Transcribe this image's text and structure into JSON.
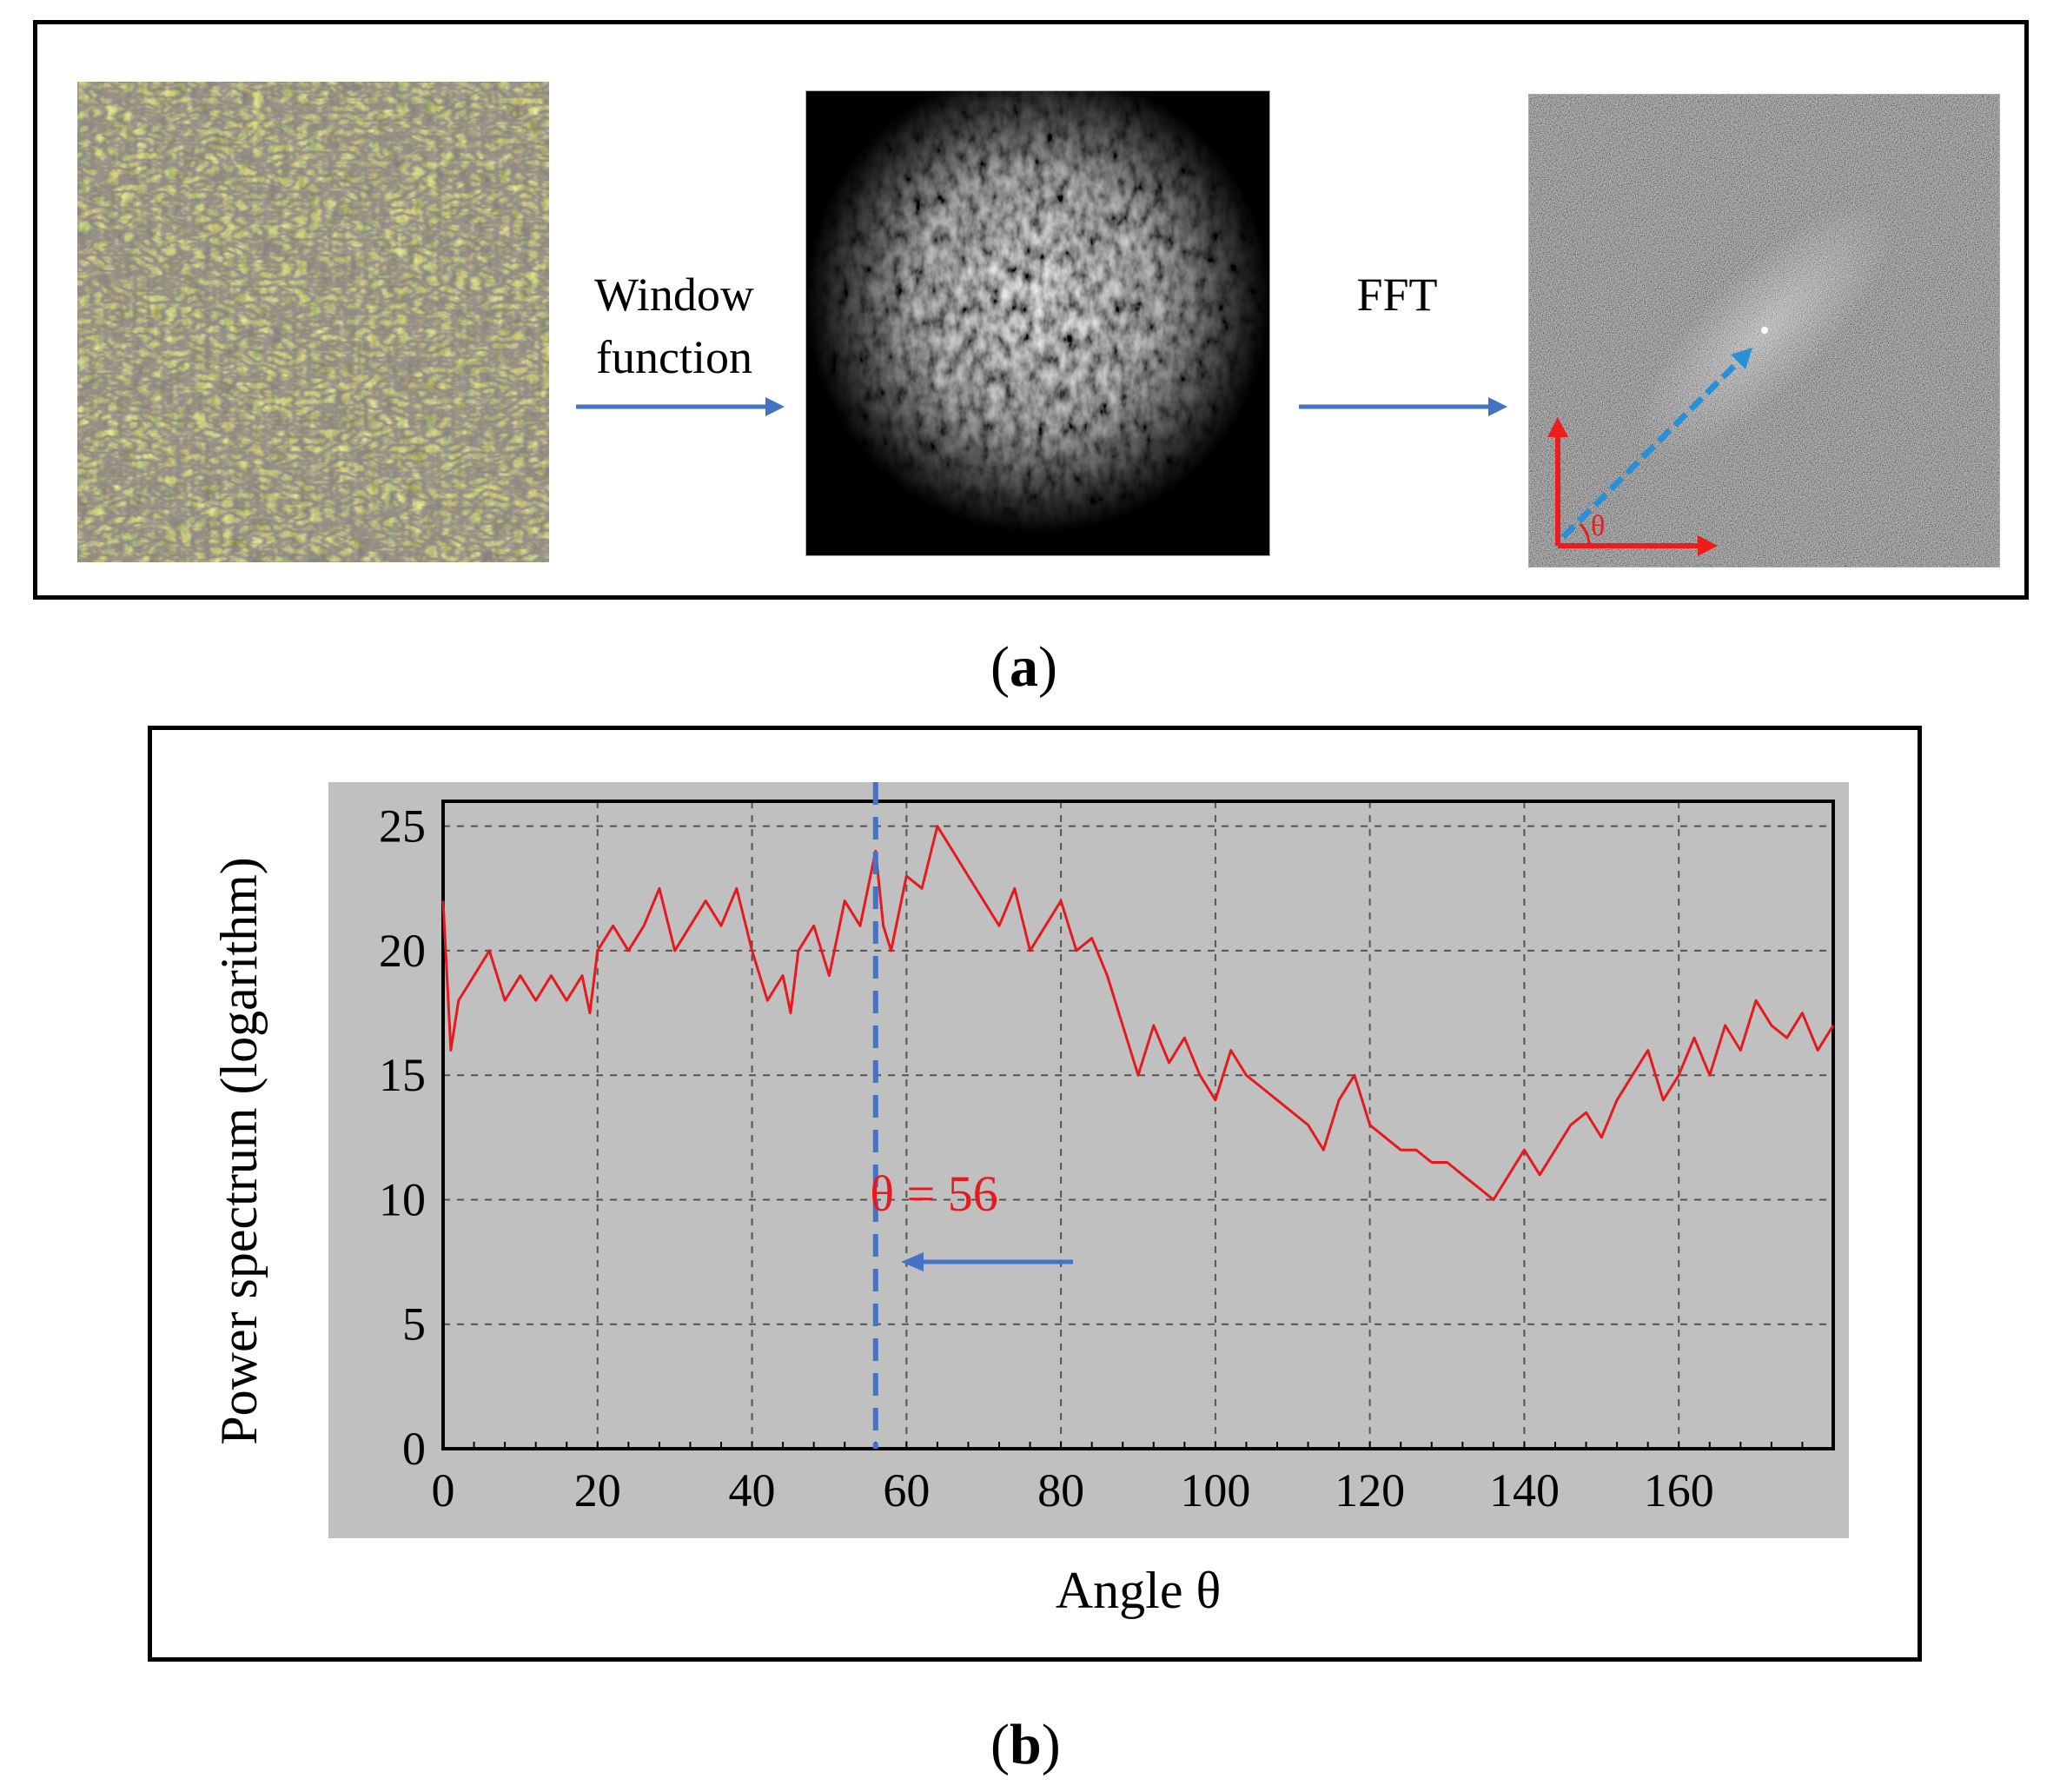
{
  "panel_a": {
    "window_label_line1": "Window",
    "window_label_line2": "function",
    "fft_label": "FFT",
    "theta_symbol": "θ",
    "caption_open": "(",
    "caption_letter": "a",
    "caption_close": ")"
  },
  "panel_b": {
    "caption_open": "(",
    "caption_letter": "b",
    "caption_close": ")"
  },
  "colors": {
    "arrow_blue": "#4472c4",
    "series_red": "#e8191e",
    "plot_bg": "#c0c0c0",
    "fft_arrow": "#2b8fd6"
  },
  "chart_data": {
    "type": "line",
    "xlabel": "Angle θ",
    "ylabel": "Power spectrum (logarithm)",
    "xlim": [
      0,
      180
    ],
    "ylim": [
      0,
      26
    ],
    "x_ticks": [
      0,
      20,
      40,
      60,
      80,
      100,
      120,
      140,
      160
    ],
    "y_ticks": [
      0,
      5,
      10,
      15,
      20,
      25
    ],
    "grid": true,
    "annotation": {
      "text": "θ = 56",
      "x": 56
    },
    "series": [
      {
        "name": "Power spectrum",
        "x": [
          0,
          1,
          2,
          4,
          6,
          8,
          10,
          12,
          14,
          16,
          18,
          19,
          20,
          22,
          24,
          26,
          28,
          30,
          32,
          34,
          36,
          38,
          40,
          42,
          44,
          45,
          46,
          48,
          50,
          52,
          54,
          56,
          57,
          58,
          60,
          62,
          64,
          66,
          68,
          70,
          72,
          74,
          76,
          78,
          80,
          82,
          84,
          86,
          88,
          90,
          92,
          94,
          96,
          98,
          100,
          102,
          104,
          106,
          108,
          110,
          112,
          114,
          116,
          118,
          120,
          122,
          124,
          126,
          128,
          130,
          132,
          134,
          136,
          138,
          140,
          142,
          144,
          146,
          148,
          150,
          152,
          154,
          156,
          158,
          160,
          162,
          164,
          166,
          168,
          170,
          172,
          174,
          176,
          178,
          180
        ],
        "values": [
          22,
          16,
          18,
          19,
          20,
          18,
          19,
          18,
          19,
          18,
          19,
          17.5,
          20,
          21,
          20,
          21,
          22.5,
          20,
          21,
          22,
          21,
          22.5,
          20,
          18,
          19,
          17.5,
          20,
          21,
          19,
          22,
          21,
          24,
          21,
          20,
          23,
          22.5,
          25,
          24,
          23,
          22,
          21,
          22.5,
          20,
          21,
          22,
          20,
          20.5,
          19,
          17,
          15,
          17,
          15.5,
          16.5,
          15,
          14,
          16,
          15,
          14.5,
          14,
          13.5,
          13,
          12,
          14,
          15,
          13,
          12.5,
          12,
          12,
          11.5,
          11.5,
          11,
          10.5,
          10,
          11,
          12,
          11,
          12,
          13,
          13.5,
          12.5,
          14,
          15,
          16,
          14,
          15,
          16.5,
          15,
          17,
          16,
          18,
          17,
          16.5,
          17.5,
          16,
          17
        ]
      }
    ]
  }
}
